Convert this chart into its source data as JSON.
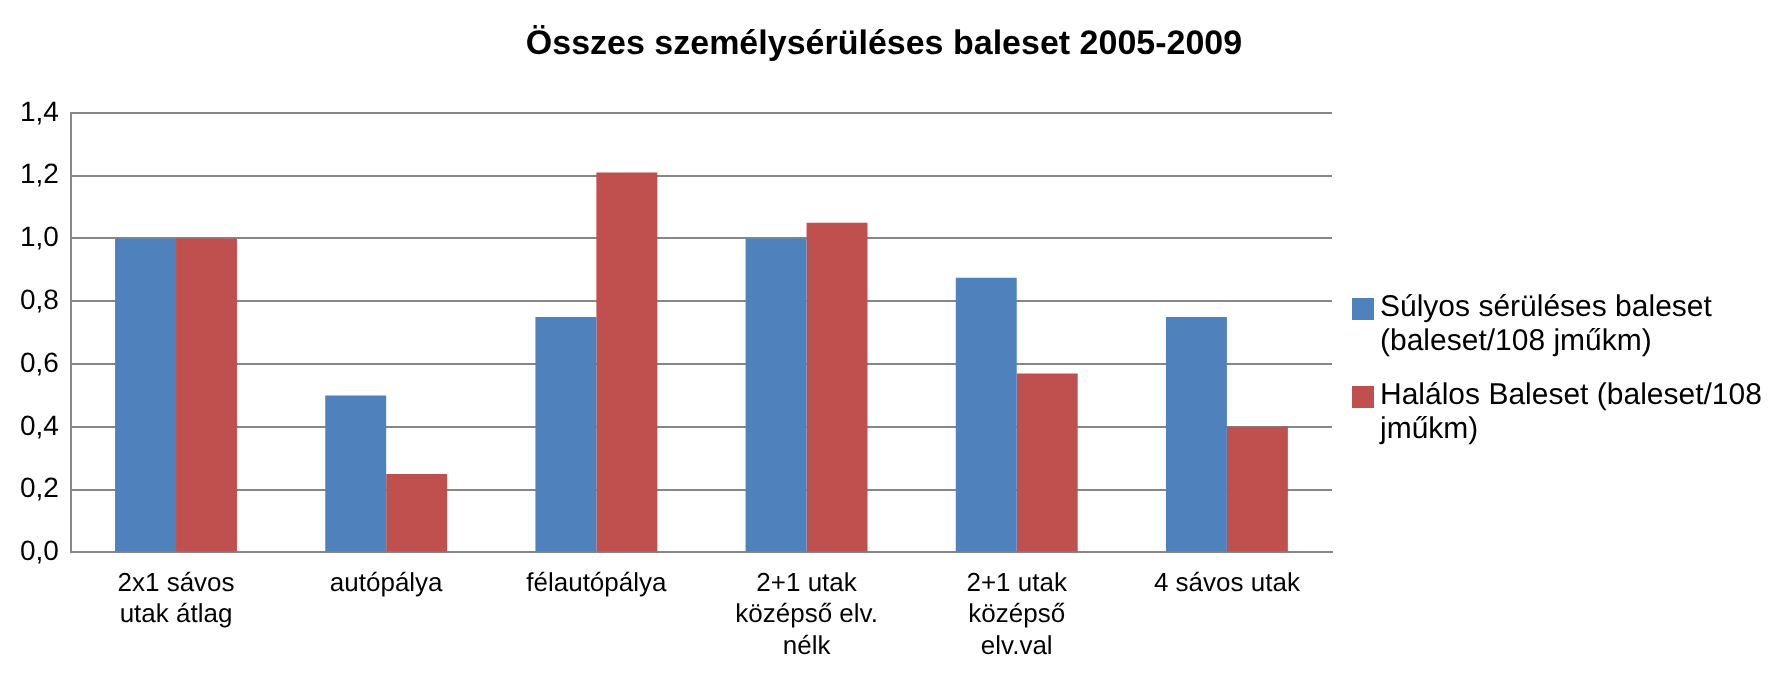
{
  "chart_data": {
    "type": "bar",
    "title": "Összes személysérüléses baleset 2005-2009",
    "categories": [
      "2x1 sávos utak átlag",
      "autópálya",
      "félautópálya",
      "2+1 utak középső elv. nélk",
      "2+1 utak középső elv.val",
      "4 sávos utak"
    ],
    "series": [
      {
        "name": "Súlyos sérüléses baleset (baleset/108 jműkm)",
        "color": "#4f81bd",
        "values": [
          1.0,
          0.5,
          0.75,
          1.0,
          0.875,
          0.75
        ]
      },
      {
        "name": "Halálos Baleset (baleset/108 jműkm)",
        "color": "#c0504d",
        "values": [
          1.0,
          0.25,
          1.21,
          1.05,
          0.57,
          0.4
        ]
      }
    ],
    "ylim": [
      0,
      1.4
    ],
    "yticks": [
      {
        "value": 0,
        "label": "0,0"
      },
      {
        "value": 0.2,
        "label": "0,2"
      },
      {
        "value": 0.4,
        "label": "0,4"
      },
      {
        "value": 0.6,
        "label": "0,6"
      },
      {
        "value": 0.8,
        "label": "0,8"
      },
      {
        "value": 1.0,
        "label": "1,0"
      },
      {
        "value": 1.2,
        "label": "1,2"
      },
      {
        "value": 1.4,
        "label": "1,4"
      }
    ],
    "grid": "y",
    "legend": "right"
  }
}
